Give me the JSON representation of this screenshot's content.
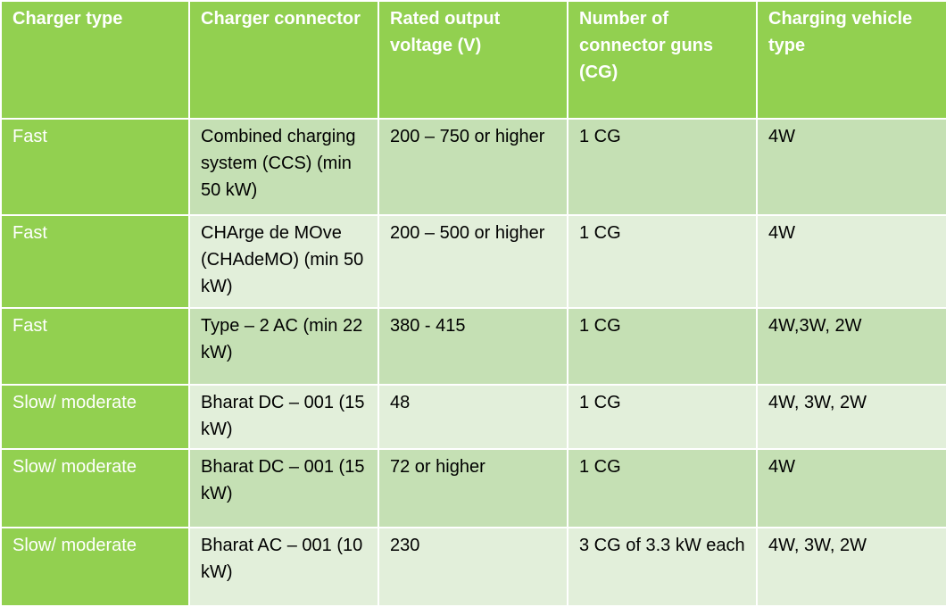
{
  "table": {
    "headers": [
      "Charger type",
      "Charger connector",
      "Rated output voltage (V)",
      "Number of connector guns (CG)",
      "Charging vehicle type"
    ],
    "rows": [
      [
        "Fast",
        "Combined charging system (CCS) (min 50 kW)",
        "200 – 750 or higher",
        "1 CG",
        "4W"
      ],
      [
        "Fast",
        "CHArge de MOve (CHAdeMO) (min 50 kW)",
        "200 – 500 or higher",
        "1 CG",
        "4W"
      ],
      [
        "Fast",
        "Type – 2 AC (min 22 kW)",
        "380 - 415",
        "1 CG",
        "4W,3W, 2W"
      ],
      [
        "Slow/ moderate",
        "Bharat DC – 001 (15 kW)",
        "48",
        "1 CG",
        "4W, 3W, 2W"
      ],
      [
        "Slow/ moderate",
        "Bharat DC – 001 (15 kW)",
        "72 or higher",
        "1 CG",
        "4W"
      ],
      [
        "Slow/ moderate",
        "Bharat AC – 001 (10 kW)",
        "230",
        "3 CG of 3.3 kW each",
        "4W, 3W, 2W"
      ]
    ]
  }
}
